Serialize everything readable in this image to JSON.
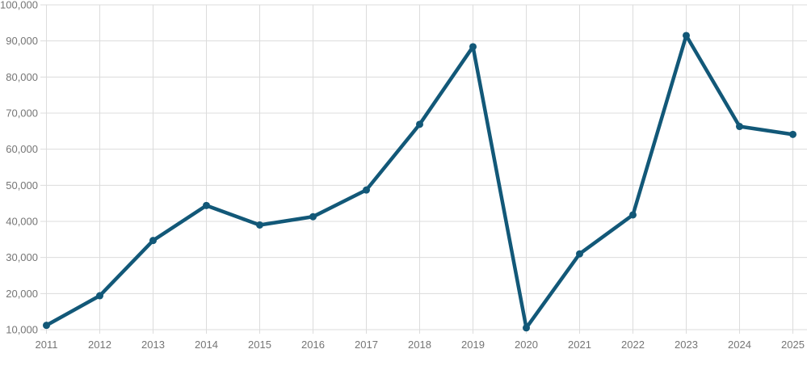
{
  "colors": {
    "line": "#125878",
    "marker": "#125878",
    "grid": "#dcdcdc",
    "axis_label": "#757575",
    "background": "#ffffff"
  },
  "chart_data": {
    "type": "line",
    "categories": [
      "2011",
      "2012",
      "2013",
      "2014",
      "2015",
      "2016",
      "2017",
      "2018",
      "2019",
      "2020",
      "2021",
      "2022",
      "2023",
      "2024",
      "2025"
    ],
    "values": [
      11200,
      19400,
      34700,
      44400,
      39000,
      41300,
      48700,
      66900,
      88400,
      10500,
      31000,
      41800,
      91500,
      66300,
      64100
    ],
    "series_name": "",
    "title": "",
    "xlabel": "",
    "ylabel": "",
    "ylim": [
      10000,
      100000
    ],
    "ytick_interval": 10000,
    "ytick_labels": [
      "10,000",
      "20,000",
      "30,000",
      "40,000",
      "50,000",
      "60,000",
      "70,000",
      "80,000",
      "90,000",
      "100,000"
    ],
    "grid": "both",
    "legend_position": "none",
    "marker_shape": "circle",
    "line_width": 4.5,
    "marker_radius": 4.5
  }
}
